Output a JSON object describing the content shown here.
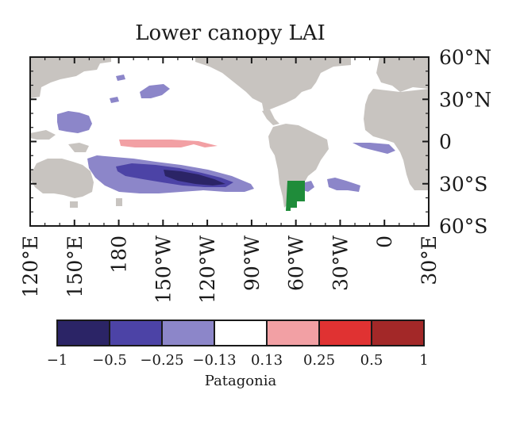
{
  "title": "Lower canopy LAI",
  "caption": "Patagonia",
  "lat_labels": [
    {
      "text": "60°N",
      "lat": 60
    },
    {
      "text": "30°N",
      "lat": 30
    },
    {
      "text": "0",
      "lat": 0
    },
    {
      "text": "30°S",
      "lat": -30
    },
    {
      "text": "60°S",
      "lat": -60
    }
  ],
  "lon_labels": [
    {
      "text": "120°E",
      "lon": 120
    },
    {
      "text": "150°E",
      "lon": 150
    },
    {
      "text": "180",
      "lon": 180
    },
    {
      "text": "150°W",
      "lon": 210
    },
    {
      "text": "120°W",
      "lon": 240
    },
    {
      "text": "90°W",
      "lon": 270
    },
    {
      "text": "60°W",
      "lon": 300
    },
    {
      "text": "30°W",
      "lon": 330
    },
    {
      "text": "0",
      "lon": 360
    },
    {
      "text": "30°E",
      "lon": 390
    }
  ],
  "map_extent": {
    "lon_min": 120,
    "lon_max": 390,
    "lat_min": -60,
    "lat_max": 60
  },
  "colorbar": {
    "boundaries": [
      "−1",
      "−0.5",
      "−0.25",
      "−0.13",
      "0.13",
      "0.25",
      "0.5",
      "1"
    ],
    "colors": [
      "#2b2466",
      "#4c43a6",
      "#8c86c9",
      "#ffffff",
      "#f2a0a4",
      "#e03232",
      "#a32828"
    ]
  },
  "colors": {
    "land": "#c8c4c0",
    "region": "#1f8c3a"
  }
}
